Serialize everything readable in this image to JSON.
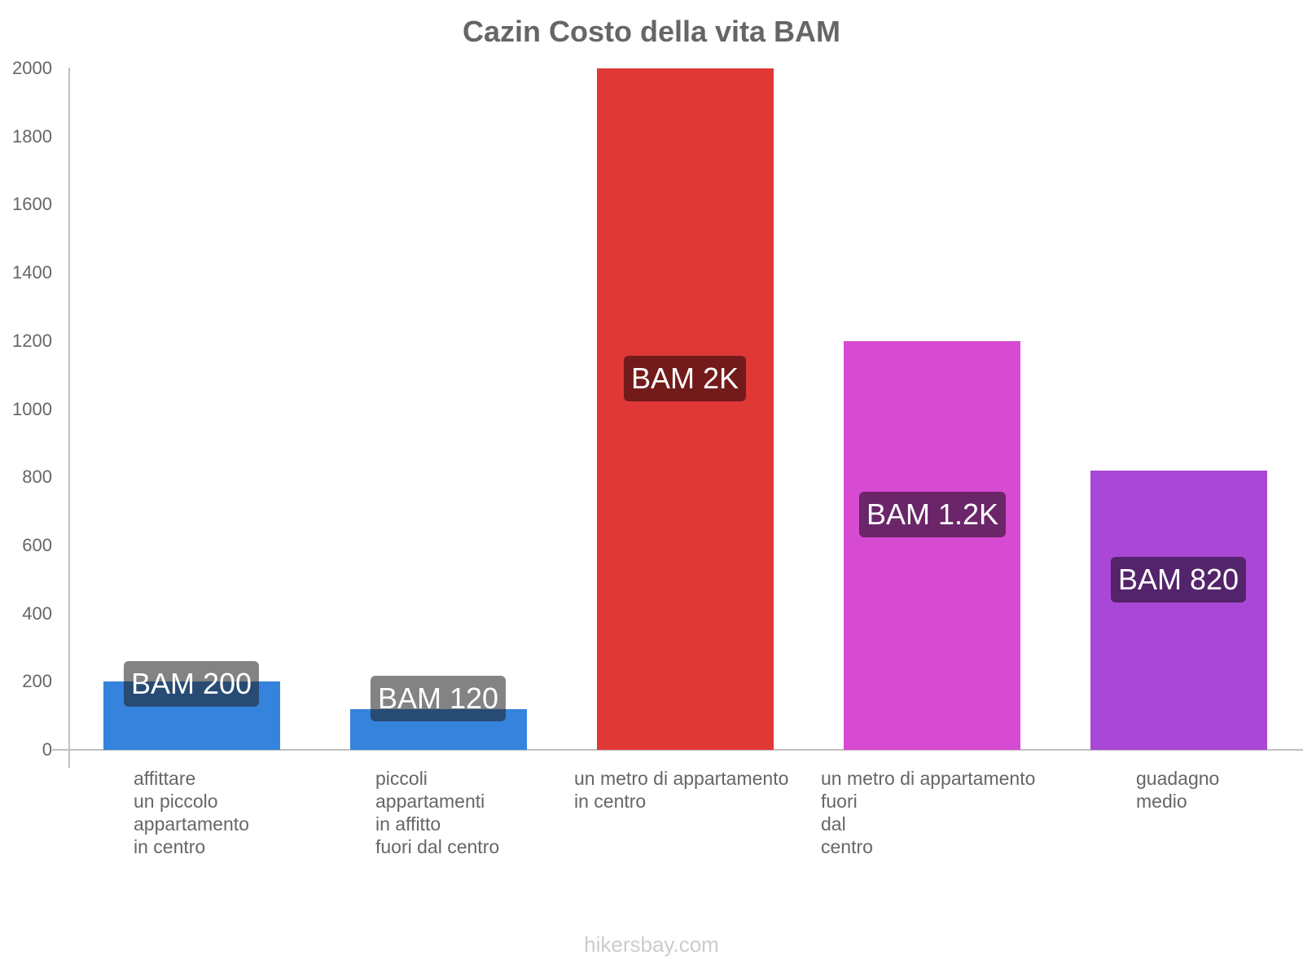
{
  "title": "Cazin Costo della vita BAM",
  "watermark": "hikersbay.com",
  "y_ticks": [
    "2000",
    "1800",
    "1600",
    "1400",
    "1200",
    "1000",
    "800",
    "600",
    "400",
    "200",
    "0"
  ],
  "bars": [
    {
      "label": "affittare\nun piccolo\nappartamento\nin centro",
      "value_label": "BAM 200",
      "value": 200,
      "color": "#3683dd",
      "label_bg": "rgba(30,30,30,0.55)"
    },
    {
      "label": "piccoli\nappartamenti\nin affitto\nfuori dal centro",
      "value_label": "BAM 120",
      "value": 120,
      "color": "#3683dd",
      "label_bg": "rgba(30,30,30,0.55)"
    },
    {
      "label": "un metro di appartamento\nin centro",
      "value_label": "BAM 2K",
      "value": 2000,
      "color": "#e03737",
      "label_bg": "#731b1b"
    },
    {
      "label": "un metro di appartamento\nfuori\ndal\ncentro",
      "value_label": "BAM 1.2K",
      "value": 1200,
      "color": "#d64bd1",
      "label_bg": "#6b2569"
    },
    {
      "label": "guadagno\nmedio",
      "value_label": "BAM 820",
      "value": 820,
      "color": "#a948d6",
      "label_bg": "#53246b"
    }
  ],
  "chart_data": {
    "type": "bar",
    "title": "Cazin Costo della vita BAM",
    "categories": [
      "affittare un piccolo appartamento in centro",
      "piccoli appartamenti in affitto fuori dal centro",
      "un metro di appartamento in centro",
      "un metro di appartamento fuori dal centro",
      "guadagno medio"
    ],
    "values": [
      200,
      120,
      2000,
      1200,
      820
    ],
    "value_labels": [
      "BAM 200",
      "BAM 120",
      "BAM 2K",
      "BAM 1.2K",
      "BAM 820"
    ],
    "colors": [
      "#3683dd",
      "#3683dd",
      "#e03737",
      "#d64bd1",
      "#a948d6"
    ],
    "xlabel": "",
    "ylabel": "",
    "ylim": [
      0,
      2000
    ],
    "yticks": [
      0,
      200,
      400,
      600,
      800,
      1000,
      1200,
      1400,
      1600,
      1800,
      2000
    ],
    "grid": false,
    "legend": "none"
  }
}
